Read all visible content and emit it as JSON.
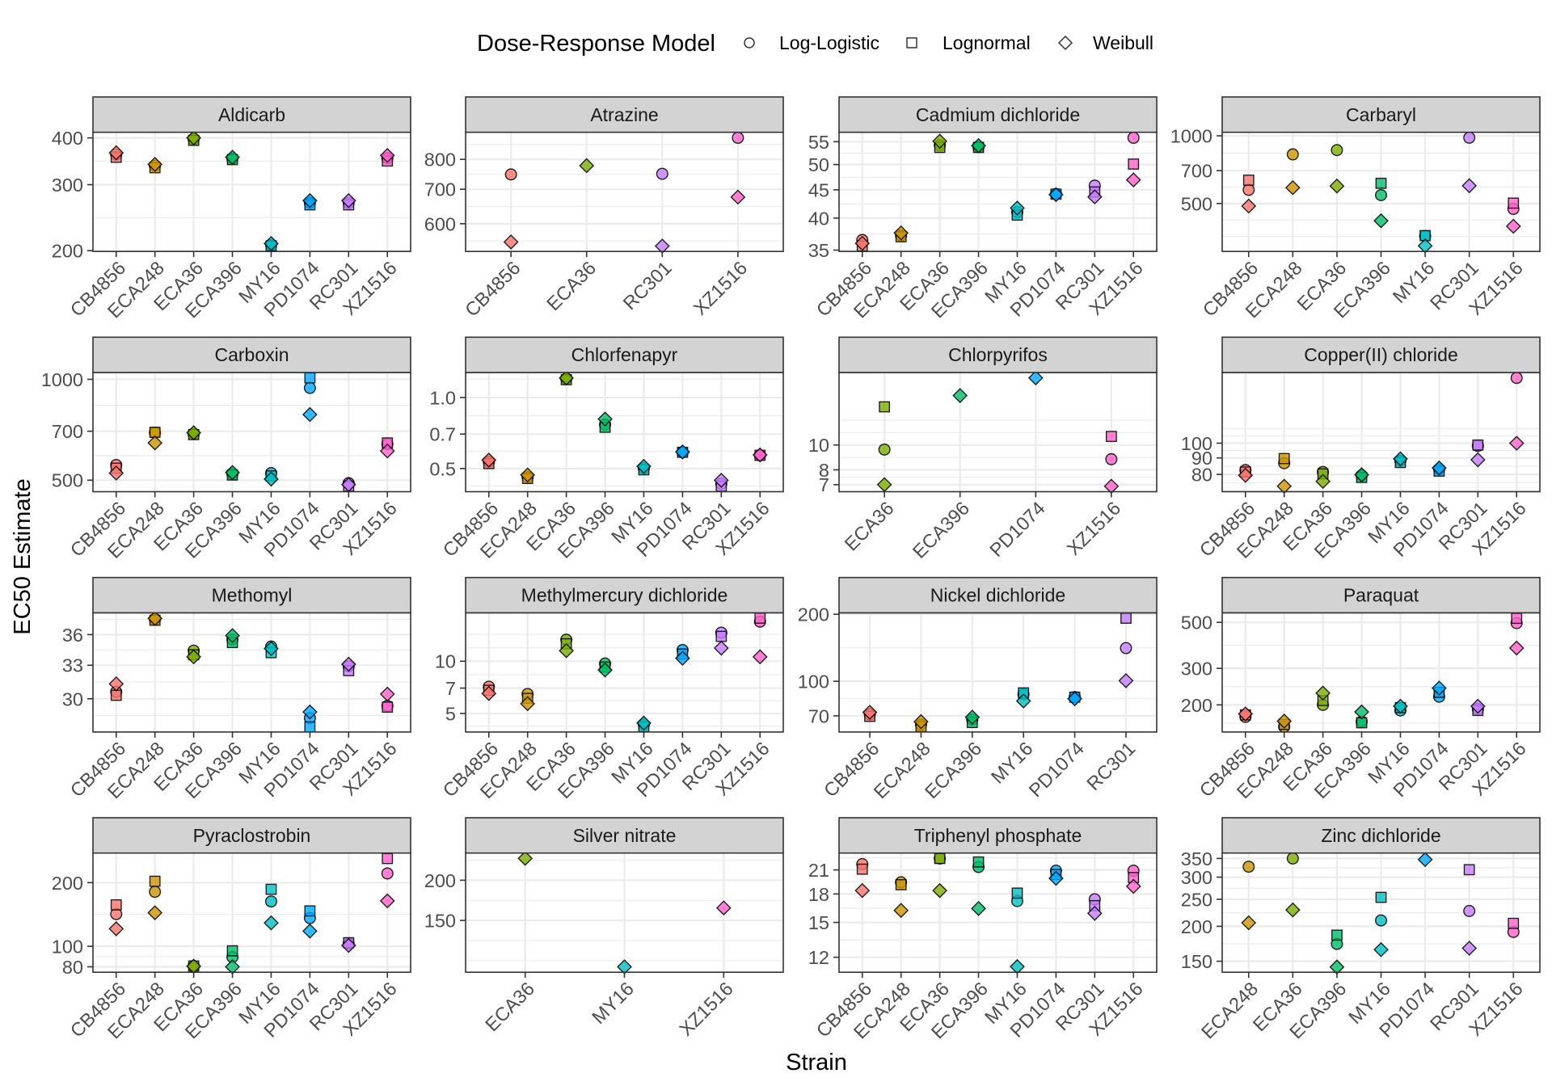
{
  "chart_data": {
    "type": "scatter",
    "title": "",
    "xlabel": "Strain",
    "ylabel": "EC50 Estimate",
    "y_scale": "log10",
    "grid": true,
    "legend": {
      "title": "Dose-Response Model",
      "placement": "top",
      "entries": [
        {
          "label": "Log-Logistic",
          "shape": "circle"
        },
        {
          "label": "Lognormal",
          "shape": "square"
        },
        {
          "label": "Weibull",
          "shape": "diamond"
        }
      ]
    },
    "strain_colors": {
      "CB4856": "#F8766D",
      "ECA248": "#CD9600",
      "ECA36": "#7CAE00",
      "ECA396": "#00BE67",
      "MY16": "#00BFC4",
      "PD1074": "#00A9FF",
      "RC301": "#C77CFF",
      "XZ1516": "#FF61CC"
    },
    "facets": [
      {
        "title": "Aldicarb",
        "strains": [
          "CB4856",
          "ECA248",
          "ECA36",
          "ECA396",
          "MY16",
          "PD1074",
          "RC301",
          "XZ1516"
        ],
        "y_ticks": [
          200,
          300,
          400
        ],
        "y_tick_labels": [
          "200",
          "300",
          "400"
        ],
        "ylim": [
          199,
          414
        ],
        "series": [
          {
            "name": "Log-Logistic",
            "values": [
              361,
              337,
              397,
              352,
              207,
              268,
              268,
              353
            ]
          },
          {
            "name": "Lognormal",
            "values": [
              355,
              333,
              394,
              350,
              206,
              265,
              265,
              347
            ]
          },
          {
            "name": "Weibull",
            "values": [
              365,
              340,
              400,
              355,
              209,
              272,
              272,
              359
            ]
          }
        ]
      },
      {
        "title": "Atrazine",
        "strains": [
          "CB4856",
          "ECA36",
          "RC301",
          "XZ1516"
        ],
        "y_ticks": [
          600,
          700,
          800
        ],
        "y_tick_labels": [
          "600",
          "700",
          "800"
        ],
        "ylim": [
          530,
          903
        ],
        "series": [
          {
            "name": "Log-Logistic",
            "values": [
              748,
              null,
              750,
              881
            ]
          },
          {
            "name": "Lognormal",
            "values": [
              null,
              null,
              null,
              null
            ]
          },
          {
            "name": "Weibull",
            "values": [
              553,
              778,
              543,
              676
            ]
          }
        ]
      },
      {
        "title": "Cadmium dichloride",
        "strains": [
          "CB4856",
          "ECA248",
          "ECA36",
          "ECA396",
          "MY16",
          "PD1074",
          "RC301",
          "XZ1516"
        ],
        "y_ticks": [
          35,
          40,
          45,
          50,
          55
        ],
        "y_tick_labels": [
          "35",
          "40",
          "45",
          "50",
          "55"
        ],
        "ylim": [
          34.8,
          57.2
        ],
        "series": [
          {
            "name": "Log-Logistic",
            "values": [
              36.5,
              37.2,
              54.2,
              53.8,
              41.0,
              44.2,
              45.8,
              55.9
            ]
          },
          {
            "name": "Lognormal",
            "values": [
              35.6,
              37.0,
              53.7,
              53.7,
              40.5,
              44.2,
              44.6,
              50.1
            ]
          },
          {
            "name": "Weibull",
            "values": [
              36.0,
              37.6,
              55.1,
              54.1,
              41.7,
              44.1,
              43.7,
              46.9
            ]
          }
        ]
      },
      {
        "title": "Carbaryl",
        "strains": [
          "CB4856",
          "ECA248",
          "ECA36",
          "ECA396",
          "MY16",
          "RC301",
          "XZ1516"
        ],
        "y_ticks": [
          500,
          700,
          1000
        ],
        "y_tick_labels": [
          "500",
          "700",
          "1000"
        ],
        "ylim": [
          306,
          1037
        ],
        "series": [
          {
            "name": "Log-Logistic",
            "values": [
              575,
              827,
              864,
              545,
              358,
              981,
              473
            ]
          },
          {
            "name": "Lognormal",
            "values": [
              635,
              null,
              null,
              615,
              360,
              null,
              502
            ]
          },
          {
            "name": "Weibull",
            "values": [
              487,
              588,
              598,
              419,
              324,
              600,
              396
            ]
          }
        ]
      },
      {
        "title": "Carboxin",
        "strains": [
          "CB4856",
          "ECA248",
          "ECA36",
          "ECA396",
          "MY16",
          "PD1074",
          "RC301",
          "XZ1516"
        ],
        "y_ticks": [
          500,
          700,
          1000
        ],
        "y_tick_labels": [
          "500",
          "700",
          "1000"
        ],
        "ylim": [
          462,
          1048
        ],
        "series": [
          {
            "name": "Log-Logistic",
            "values": [
              555,
              693,
              687,
              522,
              525,
              943,
              490,
              641
            ]
          },
          {
            "name": "Lognormal",
            "values": [
              543,
              695,
              684,
              518,
              515,
              1010,
              480,
              646
            ]
          },
          {
            "name": "Weibull",
            "values": [
              525,
              646,
              693,
              527,
              504,
              785,
              485,
              611
            ]
          }
        ]
      },
      {
        "title": "Chlorfenapyr",
        "strains": [
          "CB4856",
          "ECA248",
          "ECA36",
          "ECA396",
          "MY16",
          "PD1074",
          "RC301",
          "XZ1516"
        ],
        "y_ticks": [
          0.5,
          0.7,
          1.0
        ],
        "y_tick_labels": [
          "0.5",
          "0.7",
          "1.0"
        ],
        "ylim": [
          0.399,
          1.276
        ],
        "series": [
          {
            "name": "Log-Logistic",
            "values": [
              0.534,
              0.46,
              1.2,
              0.768,
              0.502,
              0.586,
              0.431,
              0.569
            ]
          },
          {
            "name": "Lognormal",
            "values": [
              0.525,
              0.454,
              1.19,
              0.748,
              0.494,
              0.586,
              0.421,
              0.569
            ]
          },
          {
            "name": "Weibull",
            "values": [
              0.543,
              0.47,
              1.21,
              0.81,
              0.511,
              0.588,
              0.446,
              0.571
            ]
          }
        ]
      },
      {
        "title": "Chlorpyrifos",
        "strains": [
          "ECA36",
          "ECA396",
          "PD1074",
          "XZ1516"
        ],
        "y_ticks": [
          7,
          8,
          10
        ],
        "y_tick_labels": [
          "7",
          "8",
          "10"
        ],
        "ylim": [
          6.57,
          19.2
        ],
        "series": [
          {
            "name": "Log-Logistic",
            "values": [
              9.6,
              null,
              null,
              8.8
            ]
          },
          {
            "name": "Lognormal",
            "values": [
              14.1,
              null,
              null,
              10.8
            ]
          },
          {
            "name": "Weibull",
            "values": [
              7.0,
              15.6,
              18.3,
              6.9
            ]
          }
        ]
      },
      {
        "title": "Copper(II) chloride",
        "strains": [
          "CB4856",
          "ECA248",
          "ECA36",
          "ECA396",
          "MY16",
          "PD1074",
          "RC301",
          "XZ1516"
        ],
        "y_ticks": [
          80,
          90,
          100
        ],
        "y_tick_labels": [
          "80",
          "90",
          "100"
        ],
        "ylim": [
          70.7,
          165.8
        ],
        "series": [
          {
            "name": "Log-Logistic",
            "values": [
              82.5,
              86.7,
              81.4,
              79.4,
              88.2,
              83.0,
              98.1,
              159.5
            ]
          },
          {
            "name": "Lognormal",
            "values": [
              81.4,
              89.6,
              80.3,
              78.3,
              87.1,
              81.9,
              98.7,
              null
            ]
          },
          {
            "name": "Weibull",
            "values": [
              79.5,
              73.5,
              76.1,
              79.8,
              89.4,
              83.8,
              88.8,
              100
            ]
          }
        ]
      },
      {
        "title": "Methomyl",
        "strains": [
          "CB4856",
          "ECA248",
          "ECA36",
          "ECA396",
          "MY16",
          "PD1074",
          "RC301",
          "XZ1516"
        ],
        "y_ticks": [
          30,
          33,
          36
        ],
        "y_tick_labels": [
          "30",
          "33",
          "36"
        ],
        "ylim": [
          27.3,
          38.3
        ],
        "series": [
          {
            "name": "Log-Logistic",
            "values": [
              30.6,
              37.6,
              34.4,
              35.5,
              34.8,
              28.4,
              32.9,
              29.4
            ]
          },
          {
            "name": "Lognormal",
            "values": [
              30.3,
              37.5,
              34.0,
              35.2,
              34.2,
              27.7,
              32.5,
              29.3
            ]
          },
          {
            "name": "Weibull",
            "values": [
              31.3,
              37.7,
              33.8,
              35.9,
              34.6,
              28.9,
              33.1,
              30.4
            ]
          }
        ]
      },
      {
        "title": "Methylmercury dichloride",
        "strains": [
          "CB4856",
          "ECA248",
          "ECA36",
          "ECA396",
          "MY16",
          "PD1074",
          "RC301",
          "XZ1516"
        ],
        "y_ticks": [
          5,
          7,
          10
        ],
        "y_tick_labels": [
          "5",
          "7",
          "10"
        ],
        "ylim": [
          3.91,
          19.0
        ],
        "series": [
          {
            "name": "Log-Logistic",
            "values": [
              7.13,
              6.47,
              13.3,
              9.7,
              4.33,
              11.6,
              14.6,
              16.9
            ]
          },
          {
            "name": "Lognormal",
            "values": [
              6.8,
              6.11,
              12.6,
              9.25,
              4.2,
              11.0,
              13.9,
              17.7
            ]
          },
          {
            "name": "Weibull",
            "values": [
              6.52,
              5.69,
              11.5,
              8.9,
              4.4,
              10.4,
              11.9,
              10.6
            ]
          }
        ]
      },
      {
        "title": "Nickel dichloride",
        "strains": [
          "CB4856",
          "ECA248",
          "ECA396",
          "MY16",
          "PD1074",
          "RC301"
        ],
        "y_ticks": [
          70,
          100,
          200
        ],
        "y_tick_labels": [
          "70",
          "100",
          "200"
        ],
        "ylim": [
          59.2,
          203
        ],
        "series": [
          {
            "name": "Log-Logistic",
            "values": [
              71.0,
              63.9,
              67.2,
              87.5,
              84.9,
              141
            ]
          },
          {
            "name": "Lognormal",
            "values": [
              69.6,
              62.6,
              65.3,
              88.7,
              84.9,
              192
            ]
          },
          {
            "name": "Weibull",
            "values": [
              72.6,
              65.9,
              69.0,
              81.6,
              83.5,
              100.6
            ]
          }
        ]
      },
      {
        "title": "Paraquat",
        "strains": [
          "CB4856",
          "ECA248",
          "ECA36",
          "ECA396",
          "MY16",
          "PD1074",
          "RC301",
          "XZ1516"
        ],
        "y_ticks": [
          200,
          300,
          500
        ],
        "y_tick_labels": [
          "200",
          "300",
          "500"
        ],
        "ylim": [
          148,
          556
        ],
        "series": [
          {
            "name": "Log-Logistic",
            "values": [
              175,
              157,
              200,
              166,
              188,
              219,
              191,
              496
            ]
          },
          {
            "name": "Lognormal",
            "values": [
              179,
              161,
              210,
              164,
              194,
              230,
              188,
              523
            ]
          },
          {
            "name": "Weibull",
            "values": [
              181,
              167,
              228,
              185,
              197,
              241,
              197,
              376
            ]
          }
        ]
      },
      {
        "title": "Pyraclostrobin",
        "strains": [
          "CB4856",
          "ECA248",
          "ECA36",
          "ECA396",
          "MY16",
          "PD1074",
          "RC301",
          "XZ1516"
        ],
        "y_ticks": [
          80,
          100,
          200
        ],
        "y_tick_labels": [
          "80",
          "100",
          "200"
        ],
        "ylim": [
          75.4,
          276
        ],
        "series": [
          {
            "name": "Log-Logistic",
            "values": [
              142,
              181,
              80.7,
              88.9,
              163,
              136,
              103,
              221
            ]
          },
          {
            "name": "Lognormal",
            "values": [
              157,
              203,
              80.7,
              95.2,
              186,
              147,
              104,
              260
            ]
          },
          {
            "name": "Weibull",
            "values": [
              121,
              144,
              80.5,
              80.0,
              129,
              118,
              101,
              164
            ]
          }
        ]
      },
      {
        "title": "Silver nitrate",
        "strains": [
          "ECA36",
          "MY16",
          "XZ1516"
        ],
        "y_ticks": [
          150,
          200
        ],
        "y_tick_labels": [
          "150",
          "200"
        ],
        "ylim": [
          103.5,
          243
        ],
        "series": [
          {
            "name": "Log-Logistic",
            "values": [
              null,
              null,
              null
            ]
          },
          {
            "name": "Lognormal",
            "values": [
              null,
              null,
              null
            ]
          },
          {
            "name": "Weibull",
            "values": [
              234,
              107.6,
              164
            ]
          }
        ]
      },
      {
        "title": "Triphenyl phosphate",
        "strains": [
          "CB4856",
          "ECA248",
          "ECA36",
          "ECA396",
          "MY16",
          "PD1074",
          "RC301",
          "XZ1516"
        ],
        "y_ticks": [
          12,
          15,
          18,
          21
        ],
        "y_tick_labels": [
          "12",
          "15",
          "18",
          "21"
        ],
        "ylim": [
          10.9,
          23.4
        ],
        "series": [
          {
            "name": "Log-Logistic",
            "values": [
              21.8,
              19.4,
              22.6,
              21.4,
              17.2,
              20.9,
              17.4,
              20.9
            ]
          },
          {
            "name": "Lognormal",
            "values": [
              21.1,
              19.1,
              22.6,
              22.1,
              18.1,
              20.4,
              16.7,
              20.0
            ]
          },
          {
            "name": "Weibull",
            "values": [
              18.4,
              16.2,
              18.4,
              16.4,
              11.3,
              19.9,
              15.9,
              18.9
            ]
          }
        ]
      },
      {
        "title": "Zinc dichloride",
        "strains": [
          "ECA248",
          "ECA36",
          "ECA396",
          "MY16",
          "PD1074",
          "RC301",
          "XZ1516"
        ],
        "y_ticks": [
          150,
          200,
          250,
          300,
          350
        ],
        "y_tick_labels": [
          "150",
          "200",
          "250",
          "300",
          "350"
        ],
        "ylim": [
          137,
          366
        ],
        "series": [
          {
            "name": "Log-Logistic",
            "values": [
              327,
              350,
              173,
              210,
              null,
              227,
              191
            ]
          },
          {
            "name": "Lognormal",
            "values": [
              null,
              null,
              186,
              254,
              null,
              319,
              205
            ]
          },
          {
            "name": "Weibull",
            "values": [
              206,
              229,
              143,
              165,
              347,
              167,
              null
            ]
          }
        ]
      }
    ]
  }
}
